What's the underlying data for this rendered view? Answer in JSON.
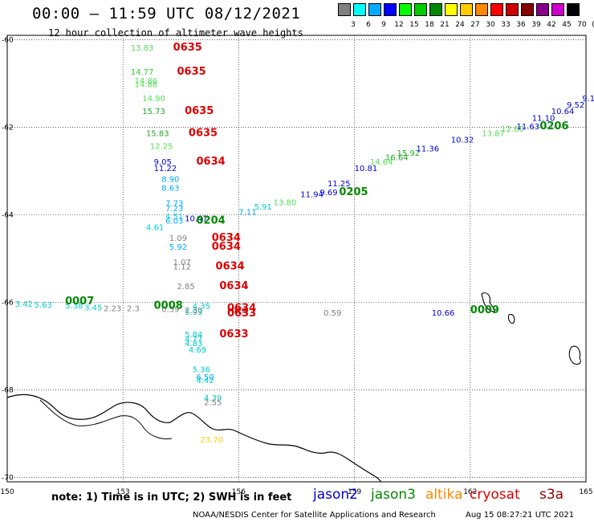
{
  "title": "00:00 – 11:59 UTC 08/12/2021",
  "subtitle": "12 hour collection of altimeter wave heights",
  "colorbar": {
    "labels": [
      "3",
      "6",
      "9",
      "12",
      "15",
      "18",
      "21",
      "24",
      "27",
      "30",
      "33",
      "36",
      "39",
      "42",
      "45",
      "70",
      "(ft)"
    ],
    "colors": [
      "#808080",
      "#00ffff",
      "#00aaff",
      "#0000ff",
      "#00ff00",
      "#00cc00",
      "#008800",
      "#ffff00",
      "#ffcc00",
      "#ff8800",
      "#ff0000",
      "#cc0000",
      "#880000",
      "#880088",
      "#cc00cc",
      "#000000"
    ]
  },
  "map": {
    "x_ticks": [
      "150",
      "153",
      "156",
      "159",
      "162",
      "165"
    ],
    "y_ticks": [
      "-60",
      "-62",
      "-64",
      "-66",
      "-68",
      "-70"
    ],
    "track_labels": [
      {
        "text": "0635",
        "color": "#dd0000",
        "lon": 154.3,
        "lat": -60.25
      },
      {
        "text": "0635",
        "color": "#dd0000",
        "lon": 154.4,
        "lat": -60.8
      },
      {
        "text": "0635",
        "color": "#dd0000",
        "lon": 154.6,
        "lat": -61.7
      },
      {
        "text": "0635",
        "color": "#dd0000",
        "lon": 154.7,
        "lat": -62.2
      },
      {
        "text": "0634",
        "color": "#dd0000",
        "lon": 154.9,
        "lat": -62.85
      },
      {
        "text": "0634",
        "color": "#dd0000",
        "lon": 155.3,
        "lat": -64.6
      },
      {
        "text": "0634",
        "color": "#dd0000",
        "lon": 155.3,
        "lat": -64.8
      },
      {
        "text": "0634",
        "color": "#dd0000",
        "lon": 155.4,
        "lat": -65.25
      },
      {
        "text": "0634",
        "color": "#dd0000",
        "lon": 155.5,
        "lat": -65.7
      },
      {
        "text": "0634",
        "color": "#dd0000",
        "lon": 155.7,
        "lat": -66.2
      },
      {
        "text": "0633",
        "color": "#dd0000",
        "lon": 155.7,
        "lat": -66.32
      },
      {
        "text": "0633",
        "color": "#dd0000",
        "lon": 155.5,
        "lat": -66.8
      },
      {
        "text": "0204",
        "color": "#008800",
        "lon": 154.9,
        "lat": -64.2
      },
      {
        "text": "0205",
        "color": "#008800",
        "lon": 158.6,
        "lat": -63.55
      },
      {
        "text": "0206",
        "color": "#008800",
        "lon": 163.8,
        "lat": -62.05
      },
      {
        "text": "0007",
        "color": "#008800",
        "lon": 151.5,
        "lat": -66.05
      },
      {
        "text": "0008",
        "color": "#008800",
        "lon": 153.8,
        "lat": -66.15
      },
      {
        "text": "0009",
        "color": "#008800",
        "lon": 162.0,
        "lat": -66.25
      }
    ],
    "value_labels": [
      {
        "text": "13.83",
        "color": "#55dd55",
        "lon": 153.2,
        "lat": -60.25
      },
      {
        "text": "14.77",
        "color": "#33cc33",
        "lon": 153.2,
        "lat": -60.8
      },
      {
        "text": "14.86",
        "color": "#55dd55",
        "lon": 153.3,
        "lat": -61.0
      },
      {
        "text": "14.88",
        "color": "#55dd55",
        "lon": 153.3,
        "lat": -61.08
      },
      {
        "text": "14.90",
        "color": "#55dd55",
        "lon": 153.5,
        "lat": -61.4
      },
      {
        "text": "15.73",
        "color": "#22aa22",
        "lon": 153.5,
        "lat": -61.7
      },
      {
        "text": "15.83",
        "color": "#22aa22",
        "lon": 153.6,
        "lat": -62.2
      },
      {
        "text": "12.25",
        "color": "#55dd55",
        "lon": 153.7,
        "lat": -62.5
      },
      {
        "text": "9.05",
        "color": "#0000cc",
        "lon": 153.8,
        "lat": -62.85
      },
      {
        "text": "11.22",
        "color": "#0000cc",
        "lon": 153.8,
        "lat": -63.0
      },
      {
        "text": "8.90",
        "color": "#00aaff",
        "lon": 154.0,
        "lat": -63.25
      },
      {
        "text": "8.63",
        "color": "#00aaff",
        "lon": 154.0,
        "lat": -63.45
      },
      {
        "text": "7.73",
        "color": "#00aaff",
        "lon": 154.1,
        "lat": -63.8
      },
      {
        "text": "7.23",
        "color": "#00aaff",
        "lon": 154.1,
        "lat": -63.92
      },
      {
        "text": "4.51",
        "color": "#00cccc",
        "lon": 154.1,
        "lat": -64.1
      },
      {
        "text": "6.03",
        "color": "#00aaff",
        "lon": 154.1,
        "lat": -64.2
      },
      {
        "text": "4.61",
        "color": "#00cccc",
        "lon": 153.6,
        "lat": -64.35
      },
      {
        "text": "10.47",
        "color": "#0000cc",
        "lon": 154.6,
        "lat": -64.15
      },
      {
        "text": "7.11",
        "color": "#00aaff",
        "lon": 156.0,
        "lat": -64.0
      },
      {
        "text": "1.09",
        "color": "#808080",
        "lon": 154.2,
        "lat": -64.6
      },
      {
        "text": "5.92",
        "color": "#00aaff",
        "lon": 154.2,
        "lat": -64.8
      },
      {
        "text": "1.07",
        "color": "#808080",
        "lon": 154.3,
        "lat": -65.15
      },
      {
        "text": "1.12",
        "color": "#808080",
        "lon": 154.3,
        "lat": -65.25
      },
      {
        "text": "2.85",
        "color": "#808080",
        "lon": 154.4,
        "lat": -65.7
      },
      {
        "text": "4.35",
        "color": "#00cccc",
        "lon": 154.8,
        "lat": -66.15
      },
      {
        "text": "5.93",
        "color": "#00cccc",
        "lon": 154.6,
        "lat": -66.28
      },
      {
        "text": "5.84",
        "color": "#00cccc",
        "lon": 154.6,
        "lat": -66.8
      },
      {
        "text": "4.77",
        "color": "#00cccc",
        "lon": 154.6,
        "lat": -66.9
      },
      {
        "text": "4.83",
        "color": "#00cccc",
        "lon": 154.6,
        "lat": -67.0
      },
      {
        "text": "4.69",
        "color": "#00cccc",
        "lon": 154.7,
        "lat": -67.15
      },
      {
        "text": "5.36",
        "color": "#00cccc",
        "lon": 154.8,
        "lat": -67.6
      },
      {
        "text": "6.50",
        "color": "#00aaff",
        "lon": 154.9,
        "lat": -67.77
      },
      {
        "text": "4.42",
        "color": "#00cccc",
        "lon": 154.9,
        "lat": -67.84
      },
      {
        "text": "4.39",
        "color": "#00cccc",
        "lon": 155.1,
        "lat": -68.25
      },
      {
        "text": "2.55",
        "color": "#808080",
        "lon": 155.1,
        "lat": -68.35
      },
      {
        "text": "23.70",
        "color": "#ffcc00",
        "lon": 155.0,
        "lat": -69.2
      },
      {
        "text": "3.42",
        "color": "#00cccc",
        "lon": 150.2,
        "lat": -66.1
      },
      {
        "text": "5.63",
        "color": "#00cccc",
        "lon": 150.7,
        "lat": -66.12
      },
      {
        "text": "5.38",
        "color": "#00cccc",
        "lon": 151.5,
        "lat": -66.14
      },
      {
        "text": "3.45",
        "color": "#00cccc",
        "lon": 152.0,
        "lat": -66.18
      },
      {
        "text": "2.23",
        "color": "#808080",
        "lon": 152.5,
        "lat": -66.2
      },
      {
        "text": "2.3",
        "color": "#808080",
        "lon": 153.1,
        "lat": -66.2
      },
      {
        "text": "0.59",
        "color": "#808080",
        "lon": 154.0,
        "lat": -66.22
      },
      {
        "text": "2.30",
        "color": "#808080",
        "lon": 154.6,
        "lat": -66.25
      },
      {
        "text": "0.89",
        "color": "#808080",
        "lon": 155.8,
        "lat": -66.25
      },
      {
        "text": "0.59",
        "color": "#808080",
        "lon": 158.2,
        "lat": -66.3
      },
      {
        "text": "5.91",
        "color": "#00cccc",
        "lon": 156.4,
        "lat": -63.88
      },
      {
        "text": "13.80",
        "color": "#55dd55",
        "lon": 156.9,
        "lat": -63.78
      },
      {
        "text": "11.94",
        "color": "#0000cc",
        "lon": 157.6,
        "lat": -63.6
      },
      {
        "text": "9.69",
        "color": "#0000cc",
        "lon": 158.1,
        "lat": -63.55
      },
      {
        "text": "11.25",
        "color": "#0000cc",
        "lon": 158.3,
        "lat": -63.35
      },
      {
        "text": "10.81",
        "color": "#0000cc",
        "lon": 159.0,
        "lat": -63.0
      },
      {
        "text": "14.64",
        "color": "#55dd55",
        "lon": 159.4,
        "lat": -62.85
      },
      {
        "text": "16.64",
        "color": "#22aa22",
        "lon": 159.8,
        "lat": -62.75
      },
      {
        "text": "15.92",
        "color": "#22aa22",
        "lon": 160.1,
        "lat": -62.65
      },
      {
        "text": "11.36",
        "color": "#0000cc",
        "lon": 160.6,
        "lat": -62.55
      },
      {
        "text": "10.32",
        "color": "#0000cc",
        "lon": 161.5,
        "lat": -62.35
      },
      {
        "text": "13.87",
        "color": "#55dd55",
        "lon": 162.3,
        "lat": -62.2
      },
      {
        "text": "12.60",
        "color": "#55dd55",
        "lon": 162.8,
        "lat": -62.1
      },
      {
        "text": "11.63",
        "color": "#0000cc",
        "lon": 163.2,
        "lat": -62.05
      },
      {
        "text": "11.10",
        "color": "#0000cc",
        "lon": 163.6,
        "lat": -61.85
      },
      {
        "text": "10.64",
        "color": "#0000cc",
        "lon": 164.1,
        "lat": -61.7
      },
      {
        "text": "9.52",
        "color": "#0000cc",
        "lon": 164.5,
        "lat": -61.55
      },
      {
        "text": "9.1",
        "color": "#0000cc",
        "lon": 164.9,
        "lat": -61.4
      },
      {
        "text": "10.66",
        "color": "#0000cc",
        "lon": 161.0,
        "lat": -66.3
      }
    ]
  },
  "note": "note: 1) Time is in UTC; 2) SWH is in feet",
  "satellites": [
    {
      "name": "jason2",
      "color": "#0000cc"
    },
    {
      "name": "jason3",
      "color": "#008800"
    },
    {
      "name": "altika",
      "color": "#ff8800"
    },
    {
      "name": "cryosat",
      "color": "#dd0000"
    },
    {
      "name": "s3a",
      "color": "#880000"
    }
  ],
  "credit": "NOAA/NESDIS Center for Satellite Applications and Research",
  "timestamp": "Aug 15 08:27:21 UTC 2021"
}
